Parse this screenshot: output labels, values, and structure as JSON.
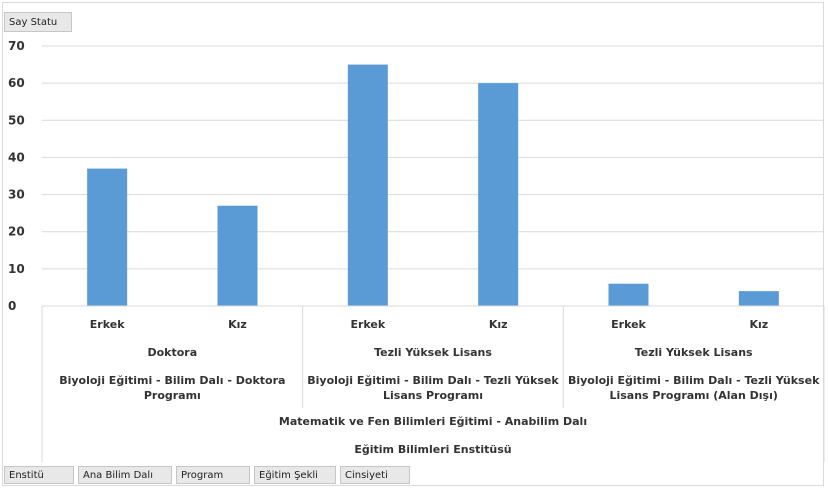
{
  "header": {
    "value_field_label": "Say Statu"
  },
  "footer": {
    "fields": [
      {
        "label": "Enstitü"
      },
      {
        "label": "Ana Bilim Dalı"
      },
      {
        "label": "Program"
      },
      {
        "label": "Eğitim Şekli"
      },
      {
        "label": "Cinsiyeti"
      }
    ]
  },
  "chart_data": {
    "type": "bar",
    "color": "#5b9bd5",
    "ylim": [
      0,
      70
    ],
    "yticks": [
      0,
      10,
      20,
      30,
      40,
      50,
      60,
      70
    ],
    "grid": true,
    "categories": [
      "Erkek",
      "Kız",
      "Erkek",
      "Kız",
      "Erkek",
      "Kız"
    ],
    "values": [
      37,
      27,
      65,
      60,
      6,
      4
    ],
    "groups_level2": [
      {
        "label": "Doktora",
        "span": [
          0,
          1
        ]
      },
      {
        "label": "Tezli Yüksek Lisans",
        "span": [
          2,
          3
        ]
      },
      {
        "label": "Tezli Yüksek Lisans",
        "span": [
          4,
          5
        ]
      }
    ],
    "groups_level3": [
      {
        "lines": [
          "Biyoloji Eğitimi - Bilim Dalı - Doktora",
          "Programı"
        ],
        "span": [
          0,
          1
        ]
      },
      {
        "lines": [
          "Biyoloji Eğitimi - Bilim Dalı - Tezli Yüksek",
          "Lisans Programı"
        ],
        "span": [
          2,
          3
        ]
      },
      {
        "lines": [
          "Biyoloji Eğitimi - Bilim Dalı - Tezli Yüksek",
          "Lisans Programı (Alan Dışı)"
        ],
        "span": [
          4,
          5
        ]
      }
    ],
    "group_level4": "Matematik ve Fen Bilimleri Eğitimi - Anabilim Dalı",
    "group_level5": "Eğitim Bilimleri Enstitüsü"
  }
}
